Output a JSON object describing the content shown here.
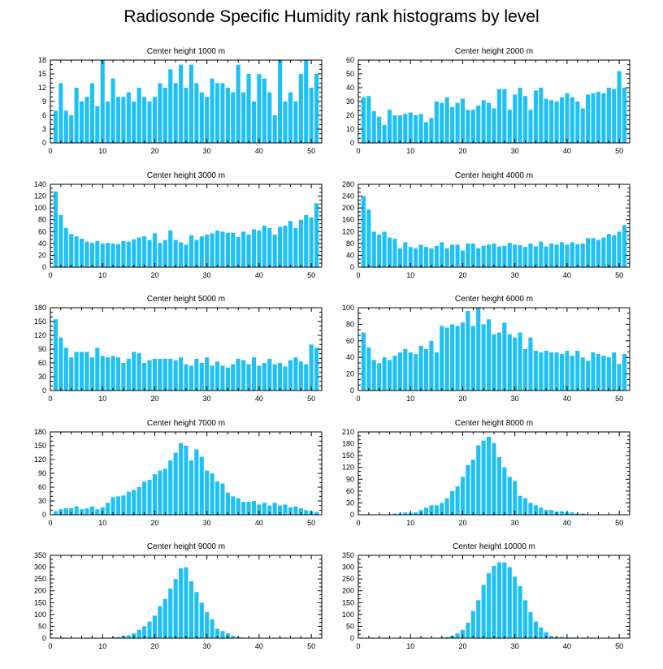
{
  "title": "Radiosonde Specific Humidity rank histograms by level",
  "colors": {
    "bar": "#1ec0f5",
    "axis": "#000000",
    "background": "#ffffff"
  },
  "chart_data": [
    {
      "type": "bar",
      "title": "Center height 1000 m",
      "xlabel": "",
      "ylabel": "",
      "xlim": [
        0,
        52
      ],
      "xticks": [
        0,
        10,
        20,
        30,
        40,
        50
      ],
      "ylim": [
        0,
        18
      ],
      "yticks": [
        0,
        3,
        6,
        9,
        12,
        15,
        18
      ],
      "x": [
        1,
        2,
        3,
        4,
        5,
        6,
        7,
        8,
        9,
        10,
        11,
        12,
        13,
        14,
        15,
        16,
        17,
        18,
        19,
        20,
        21,
        22,
        23,
        24,
        25,
        26,
        27,
        28,
        29,
        30,
        31,
        32,
        33,
        34,
        35,
        36,
        37,
        38,
        39,
        40,
        41,
        42,
        43,
        44,
        45,
        46,
        47,
        48,
        49,
        50,
        51
      ],
      "values": [
        7,
        13,
        7,
        6,
        12,
        9,
        10,
        13,
        8,
        18,
        9,
        14,
        10,
        10,
        11,
        9,
        12,
        10,
        9,
        10,
        13,
        12,
        16,
        13,
        17,
        12,
        17,
        13,
        11,
        10,
        14,
        13,
        13,
        12,
        11,
        17,
        11,
        15,
        9,
        15,
        14,
        11,
        6,
        18,
        9,
        11,
        9,
        15,
        18,
        12,
        15
      ]
    },
    {
      "type": "bar",
      "title": "Center height 2000 m",
      "xlabel": "",
      "ylabel": "",
      "xlim": [
        0,
        52
      ],
      "xticks": [
        0,
        10,
        20,
        30,
        40,
        50
      ],
      "ylim": [
        0,
        60
      ],
      "yticks": [
        0,
        10,
        20,
        30,
        40,
        50,
        60
      ],
      "x": [
        1,
        2,
        3,
        4,
        5,
        6,
        7,
        8,
        9,
        10,
        11,
        12,
        13,
        14,
        15,
        16,
        17,
        18,
        19,
        20,
        21,
        22,
        23,
        24,
        25,
        26,
        27,
        28,
        29,
        30,
        31,
        32,
        33,
        34,
        35,
        36,
        37,
        38,
        39,
        40,
        41,
        42,
        43,
        44,
        45,
        46,
        47,
        48,
        49,
        50,
        51
      ],
      "values": [
        33,
        34,
        23,
        19,
        13,
        24,
        20,
        20,
        21,
        22,
        20,
        21,
        15,
        18,
        30,
        29,
        33,
        26,
        29,
        32,
        24,
        24,
        27,
        31,
        29,
        25,
        39,
        39,
        24,
        35,
        40,
        34,
        24,
        38,
        40,
        32,
        31,
        30,
        33,
        36,
        33,
        30,
        25,
        35,
        36,
        37,
        36,
        40,
        39,
        52,
        40
      ]
    },
    {
      "type": "bar",
      "title": "Center height 3000 m",
      "xlabel": "",
      "ylabel": "",
      "xlim": [
        0,
        52
      ],
      "xticks": [
        0,
        10,
        20,
        30,
        40,
        50
      ],
      "ylim": [
        0,
        140
      ],
      "yticks": [
        0,
        20,
        40,
        60,
        80,
        100,
        120,
        140
      ],
      "x": [
        1,
        2,
        3,
        4,
        5,
        6,
        7,
        8,
        9,
        10,
        11,
        12,
        13,
        14,
        15,
        16,
        17,
        18,
        19,
        20,
        21,
        22,
        23,
        24,
        25,
        26,
        27,
        28,
        29,
        30,
        31,
        32,
        33,
        34,
        35,
        36,
        37,
        38,
        39,
        40,
        41,
        42,
        43,
        44,
        45,
        46,
        47,
        48,
        49,
        50,
        51
      ],
      "values": [
        128,
        88,
        66,
        56,
        52,
        48,
        43,
        41,
        44,
        40,
        41,
        40,
        39,
        44,
        43,
        47,
        50,
        52,
        46,
        57,
        41,
        46,
        62,
        46,
        42,
        38,
        54,
        46,
        52,
        55,
        57,
        62,
        60,
        58,
        58,
        51,
        60,
        55,
        64,
        62,
        70,
        66,
        55,
        68,
        70,
        78,
        66,
        80,
        88,
        84,
        108
      ]
    },
    {
      "type": "bar",
      "title": "Center height 4000 m",
      "xlabel": "",
      "ylabel": "",
      "xlim": [
        0,
        52
      ],
      "xticks": [
        0,
        10,
        20,
        30,
        40,
        50
      ],
      "ylim": [
        0,
        280
      ],
      "yticks": [
        0,
        40,
        80,
        120,
        160,
        200,
        240,
        280
      ],
      "x": [
        1,
        2,
        3,
        4,
        5,
        6,
        7,
        8,
        9,
        10,
        11,
        12,
        13,
        14,
        15,
        16,
        17,
        18,
        19,
        20,
        21,
        22,
        23,
        24,
        25,
        26,
        27,
        28,
        29,
        30,
        31,
        32,
        33,
        34,
        35,
        36,
        37,
        38,
        39,
        40,
        41,
        42,
        43,
        44,
        45,
        46,
        47,
        48,
        49,
        50,
        51
      ],
      "values": [
        240,
        195,
        120,
        110,
        120,
        100,
        96,
        64,
        84,
        68,
        64,
        76,
        68,
        64,
        72,
        84,
        64,
        76,
        76,
        56,
        80,
        80,
        64,
        72,
        76,
        80,
        70,
        72,
        82,
        76,
        74,
        68,
        80,
        70,
        86,
        70,
        80,
        76,
        84,
        76,
        84,
        78,
        80,
        98,
        98,
        92,
        100,
        112,
        108,
        120,
        142
      ]
    },
    {
      "type": "bar",
      "title": "Center height 5000 m",
      "xlabel": "",
      "ylabel": "",
      "xlim": [
        0,
        52
      ],
      "xticks": [
        0,
        10,
        20,
        30,
        40,
        50
      ],
      "ylim": [
        0,
        180
      ],
      "yticks": [
        0,
        30,
        60,
        90,
        120,
        150,
        180
      ],
      "x": [
        1,
        2,
        3,
        4,
        5,
        6,
        7,
        8,
        9,
        10,
        11,
        12,
        13,
        14,
        15,
        16,
        17,
        18,
        19,
        20,
        21,
        22,
        23,
        24,
        25,
        26,
        27,
        28,
        29,
        30,
        31,
        32,
        33,
        34,
        35,
        36,
        37,
        38,
        39,
        40,
        41,
        42,
        43,
        44,
        45,
        46,
        47,
        48,
        49,
        50,
        51
      ],
      "values": [
        155,
        115,
        93,
        72,
        84,
        84,
        84,
        72,
        93,
        75,
        72,
        75,
        72,
        60,
        69,
        84,
        81,
        60,
        66,
        69,
        69,
        69,
        69,
        66,
        72,
        57,
        54,
        69,
        60,
        72,
        54,
        63,
        54,
        50,
        57,
        69,
        66,
        57,
        72,
        54,
        60,
        69,
        57,
        60,
        52,
        66,
        72,
        63,
        57,
        100,
        93
      ]
    },
    {
      "type": "bar",
      "title": "Center height 6000 m",
      "xlabel": "",
      "ylabel": "",
      "xlim": [
        0,
        52
      ],
      "xticks": [
        0,
        10,
        20,
        30,
        40,
        50
      ],
      "ylim": [
        0,
        100
      ],
      "yticks": [
        0,
        20,
        40,
        60,
        80,
        100
      ],
      "x": [
        1,
        2,
        3,
        4,
        5,
        6,
        7,
        8,
        9,
        10,
        11,
        12,
        13,
        14,
        15,
        16,
        17,
        18,
        19,
        20,
        21,
        22,
        23,
        24,
        25,
        26,
        27,
        28,
        29,
        30,
        31,
        32,
        33,
        34,
        35,
        36,
        37,
        38,
        39,
        40,
        41,
        42,
        43,
        44,
        45,
        46,
        47,
        48,
        49,
        50,
        51
      ],
      "values": [
        70,
        52,
        37,
        33,
        40,
        37,
        42,
        46,
        50,
        46,
        44,
        54,
        50,
        60,
        46,
        78,
        76,
        80,
        78,
        82,
        96,
        78,
        100,
        80,
        86,
        68,
        70,
        82,
        68,
        64,
        70,
        50,
        64,
        48,
        46,
        48,
        46,
        46,
        44,
        48,
        42,
        48,
        40,
        36,
        46,
        44,
        42,
        40,
        46,
        32,
        44
      ]
    },
    {
      "type": "bar",
      "title": "Center height 7000 m",
      "xlabel": "",
      "ylabel": "",
      "xlim": [
        0,
        52
      ],
      "xticks": [
        0,
        10,
        20,
        30,
        40,
        50
      ],
      "ylim": [
        0,
        180
      ],
      "yticks": [
        0,
        30,
        60,
        90,
        120,
        150,
        180
      ],
      "x": [
        1,
        2,
        3,
        4,
        5,
        6,
        7,
        8,
        9,
        10,
        11,
        12,
        13,
        14,
        15,
        16,
        17,
        18,
        19,
        20,
        21,
        22,
        23,
        24,
        25,
        26,
        27,
        28,
        29,
        30,
        31,
        32,
        33,
        34,
        35,
        36,
        37,
        38,
        39,
        40,
        41,
        42,
        43,
        44,
        45,
        46,
        47,
        48,
        49,
        50,
        51
      ],
      "values": [
        8,
        12,
        14,
        14,
        18,
        12,
        14,
        18,
        12,
        16,
        26,
        38,
        40,
        42,
        50,
        54,
        60,
        72,
        76,
        88,
        96,
        100,
        118,
        135,
        156,
        150,
        118,
        142,
        126,
        96,
        90,
        72,
        68,
        48,
        40,
        36,
        28,
        28,
        30,
        22,
        26,
        20,
        26,
        20,
        22,
        16,
        18,
        14,
        10,
        8,
        6
      ]
    },
    {
      "type": "bar",
      "title": "Center height 8000 m",
      "xlabel": "",
      "ylabel": "",
      "xlim": [
        0,
        52
      ],
      "xticks": [
        0,
        10,
        20,
        30,
        40,
        50
      ],
      "ylim": [
        0,
        210
      ],
      "yticks": [
        0,
        30,
        60,
        90,
        120,
        150,
        180,
        210
      ],
      "x": [
        1,
        2,
        3,
        4,
        5,
        6,
        7,
        8,
        9,
        10,
        11,
        12,
        13,
        14,
        15,
        16,
        17,
        18,
        19,
        20,
        21,
        22,
        23,
        24,
        25,
        26,
        27,
        28,
        29,
        30,
        31,
        32,
        33,
        34,
        35,
        36,
        37,
        38,
        39,
        40,
        41,
        42,
        43,
        44,
        45,
        46,
        47,
        48,
        49,
        50,
        51
      ],
      "values": [
        0,
        0,
        0,
        0,
        0,
        0,
        3,
        3,
        6,
        5,
        6,
        12,
        18,
        24,
        24,
        30,
        42,
        60,
        72,
        96,
        126,
        140,
        176,
        188,
        198,
        182,
        146,
        120,
        96,
        86,
        48,
        42,
        30,
        24,
        18,
        12,
        12,
        8,
        9,
        6,
        6,
        3,
        3,
        0,
        0,
        0,
        0,
        0,
        0,
        0,
        0
      ]
    },
    {
      "type": "bar",
      "title": "Center height 9000 m",
      "xlabel": "",
      "ylabel": "",
      "xlim": [
        0,
        52
      ],
      "xticks": [
        0,
        10,
        20,
        30,
        40,
        50
      ],
      "ylim": [
        0,
        350
      ],
      "yticks": [
        0,
        50,
        100,
        150,
        200,
        250,
        300,
        350
      ],
      "x": [
        1,
        2,
        3,
        4,
        5,
        6,
        7,
        8,
        9,
        10,
        11,
        12,
        13,
        14,
        15,
        16,
        17,
        18,
        19,
        20,
        21,
        22,
        23,
        24,
        25,
        26,
        27,
        28,
        29,
        30,
        31,
        32,
        33,
        34,
        35,
        36,
        37,
        38,
        39,
        40,
        41,
        42,
        43,
        44,
        45,
        46,
        47,
        48,
        49,
        50,
        51
      ],
      "values": [
        0,
        0,
        0,
        0,
        0,
        0,
        0,
        0,
        0,
        0,
        0,
        3,
        5,
        10,
        12,
        20,
        35,
        50,
        70,
        95,
        135,
        165,
        210,
        250,
        295,
        300,
        240,
        195,
        150,
        110,
        80,
        40,
        30,
        20,
        10,
        5,
        3,
        0,
        0,
        0,
        0,
        0,
        0,
        0,
        0,
        0,
        0,
        0,
        0,
        0,
        0
      ]
    },
    {
      "type": "bar",
      "title": "Center height 10000 m",
      "xlabel": "",
      "ylabel": "",
      "xlim": [
        0,
        52
      ],
      "xticks": [
        0,
        10,
        20,
        30,
        40,
        50
      ],
      "ylim": [
        0,
        350
      ],
      "yticks": [
        0,
        50,
        100,
        150,
        200,
        250,
        300,
        350
      ],
      "x": [
        1,
        2,
        3,
        4,
        5,
        6,
        7,
        8,
        9,
        10,
        11,
        12,
        13,
        14,
        15,
        16,
        17,
        18,
        19,
        20,
        21,
        22,
        23,
        24,
        25,
        26,
        27,
        28,
        29,
        30,
        31,
        32,
        33,
        34,
        35,
        36,
        37,
        38,
        39,
        40,
        41,
        42,
        43,
        44,
        45,
        46,
        47,
        48,
        49,
        50,
        51
      ],
      "values": [
        0,
        0,
        0,
        0,
        0,
        0,
        0,
        0,
        0,
        0,
        0,
        0,
        0,
        0,
        0,
        3,
        5,
        10,
        20,
        35,
        65,
        115,
        160,
        225,
        275,
        305,
        320,
        320,
        300,
        260,
        220,
        160,
        110,
        70,
        45,
        25,
        10,
        5,
        5,
        3,
        3,
        2,
        0,
        0,
        0,
        0,
        0,
        0,
        0,
        0,
        0
      ]
    }
  ]
}
